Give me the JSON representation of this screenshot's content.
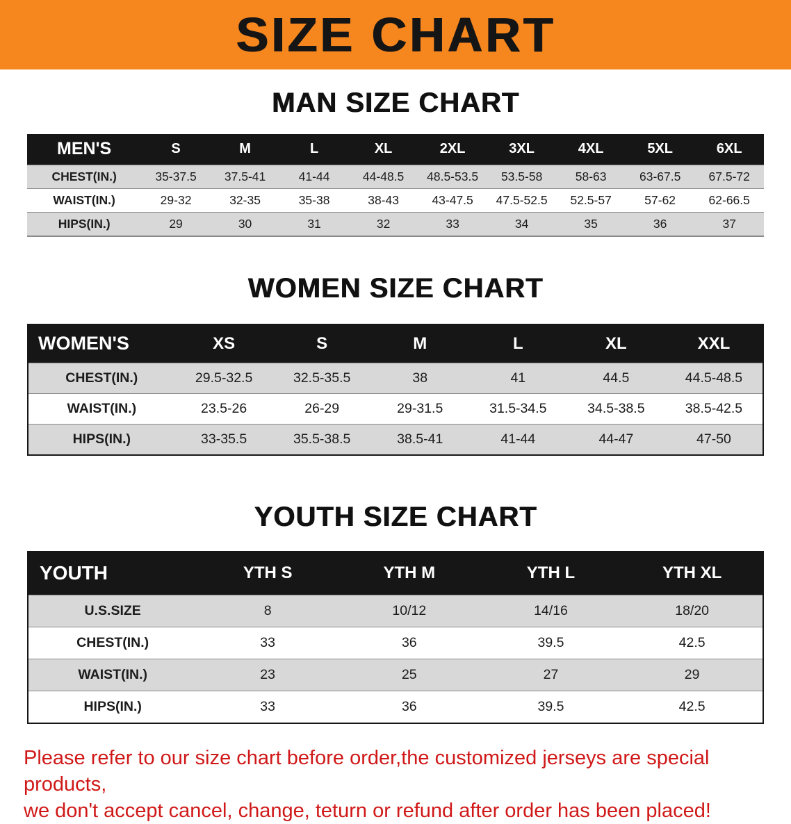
{
  "banner": {
    "title": "SIZE CHART"
  },
  "colors": {
    "banner_bg": "#F6861E",
    "header_bg": "#161616",
    "row_alt": "#D8D8D8",
    "disclaimer_red": "#D01818"
  },
  "sections": [
    {
      "heading": "MAN SIZE CHART",
      "table": {
        "header": [
          "MEN'S",
          "S",
          "M",
          "L",
          "XL",
          "2XL",
          "3XL",
          "4XL",
          "5XL",
          "6XL"
        ],
        "rows": [
          {
            "label": "CHEST(IN.)",
            "values": [
              "35-37.5",
              "37.5-41",
              "41-44",
              "44-48.5",
              "48.5-53.5",
              "53.5-58",
              "58-63",
              "63-67.5",
              "67.5-72"
            ]
          },
          {
            "label": "WAIST(IN.)",
            "values": [
              "29-32",
              "32-35",
              "35-38",
              "38-43",
              "43-47.5",
              "47.5-52.5",
              "52.5-57",
              "57-62",
              "62-66.5"
            ]
          },
          {
            "label": "HIPS(IN.)",
            "values": [
              "29",
              "30",
              "31",
              "32",
              "33",
              "34",
              "35",
              "36",
              "37"
            ]
          }
        ]
      }
    },
    {
      "heading": "WOMEN SIZE CHART",
      "table": {
        "header": [
          "WOMEN'S",
          "XS",
          "S",
          "M",
          "L",
          "XL",
          "XXL"
        ],
        "rows": [
          {
            "label": "CHEST(IN.)",
            "values": [
              "29.5-32.5",
              "32.5-35.5",
              "38",
              "41",
              "44.5",
              "44.5-48.5"
            ]
          },
          {
            "label": "WAIST(IN.)",
            "values": [
              "23.5-26",
              "26-29",
              "29-31.5",
              "31.5-34.5",
              "34.5-38.5",
              "38.5-42.5"
            ]
          },
          {
            "label": "HIPS(IN.)",
            "values": [
              "33-35.5",
              "35.5-38.5",
              "38.5-41",
              "41-44",
              "44-47",
              "47-50"
            ]
          }
        ]
      }
    },
    {
      "heading": "YOUTH SIZE CHART",
      "table": {
        "header": [
          "YOUTH",
          "YTH S",
          "YTH M",
          "YTH L",
          "YTH XL"
        ],
        "rows": [
          {
            "label": "U.S.SIZE",
            "values": [
              "8",
              "10/12",
              "14/16",
              "18/20"
            ]
          },
          {
            "label": "CHEST(IN.)",
            "values": [
              "33",
              "36",
              "39.5",
              "42.5"
            ]
          },
          {
            "label": "WAIST(IN.)",
            "values": [
              "23",
              "25",
              "27",
              "29"
            ]
          },
          {
            "label": "HIPS(IN.)",
            "values": [
              "33",
              "36",
              "39.5",
              "42.5"
            ]
          }
        ]
      }
    }
  ],
  "disclaimer": {
    "line1": "Please refer to our size chart before order,the customized jerseys are special products,",
    "line2": "we don't accept cancel, change, teturn or refund after order has been placed!"
  }
}
